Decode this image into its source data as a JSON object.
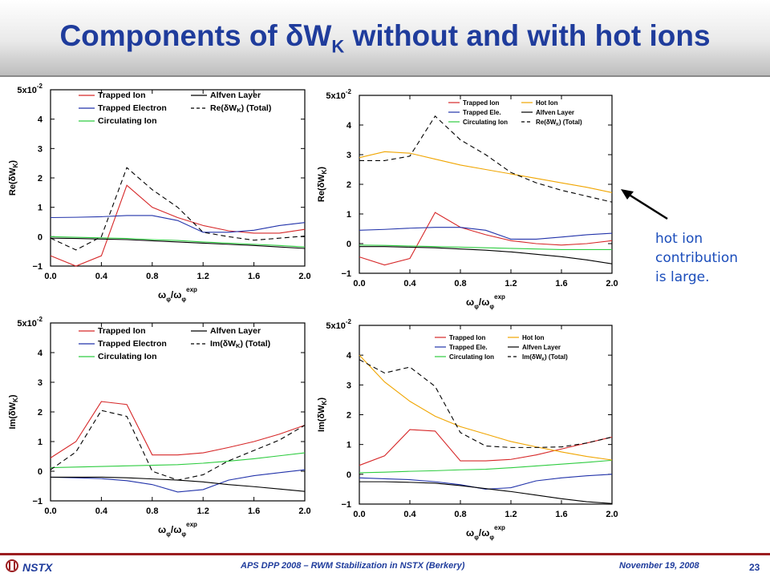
{
  "slide": {
    "title_main": "Components of δW",
    "title_sub": "K",
    "title_rest": " without and with hot ions",
    "annotation": "hot ion\ncontribution\nis large.",
    "footer_logo": "NSTX",
    "footer_center": "APS DPP 2008 – RWM Stabilization in NSTX (Berkery)",
    "footer_date": "November 19, 2008",
    "page": "23"
  },
  "colors": {
    "title": "#1f3c9c",
    "annotation": "#1b4dbb",
    "trapped_ion": "#d62728",
    "trapped_electron": "#2233aa",
    "circulating_ion": "#2ecc40",
    "alfven": "#000000",
    "hot_ion": "#f0a500",
    "total": "#000000",
    "footer_rule": "#9b1d20"
  },
  "chart_data": [
    {
      "type": "line",
      "ylabel": "Re(δW_K)",
      "xlabel": "ω_φ/ω_φ^exp",
      "x": [
        0.0,
        0.2,
        0.4,
        0.6,
        0.8,
        1.0,
        1.2,
        1.4,
        1.6,
        1.8,
        2.0
      ],
      "xlim": [
        0,
        2
      ],
      "ylim": [
        -1,
        5
      ],
      "xticks": [
        "0.0",
        "0.4",
        "0.8",
        "1.2",
        "1.6",
        "2.0"
      ],
      "yticks": [
        "-1",
        "0",
        "1",
        "2",
        "3",
        "4",
        "5x10-2"
      ],
      "legend_cols": 2,
      "series": [
        {
          "name": "Trapped Ion",
          "color": "#d62728",
          "dash": false,
          "values": [
            -0.65,
            -1.0,
            -0.65,
            1.75,
            1.0,
            0.65,
            0.38,
            0.2,
            0.12,
            0.12,
            0.25
          ]
        },
        {
          "name": "Trapped Electron",
          "color": "#2233aa",
          "dash": false,
          "values": [
            0.65,
            0.66,
            0.68,
            0.72,
            0.72,
            0.55,
            0.15,
            0.15,
            0.22,
            0.38,
            0.48
          ]
        },
        {
          "name": "Circulating Ion",
          "color": "#2ecc40",
          "dash": false,
          "values": [
            0.0,
            -0.02,
            -0.04,
            -0.06,
            -0.1,
            -0.13,
            -0.18,
            -0.22,
            -0.26,
            -0.3,
            -0.35
          ]
        },
        {
          "name": "Alfven Layer",
          "color": "#000000",
          "dash": false,
          "values": [
            -0.05,
            -0.06,
            -0.08,
            -0.1,
            -0.14,
            -0.18,
            -0.22,
            -0.26,
            -0.3,
            -0.35,
            -0.4
          ]
        },
        {
          "name": "Re(δW_K) (Total)",
          "color": "#000000",
          "dash": true,
          "values": [
            -0.05,
            -0.45,
            0.0,
            2.35,
            1.6,
            1.0,
            0.15,
            0.0,
            -0.12,
            -0.05,
            0.02
          ]
        }
      ]
    },
    {
      "type": "line",
      "ylabel": "Re(δW_K)",
      "xlabel": "ω_φ/ω_φ^exp",
      "x": [
        0.0,
        0.2,
        0.4,
        0.6,
        0.8,
        1.0,
        1.2,
        1.4,
        1.6,
        1.8,
        2.0
      ],
      "xlim": [
        0,
        2
      ],
      "ylim": [
        -1,
        5
      ],
      "xticks": [
        "0.0",
        "0.4",
        "0.8",
        "1.2",
        "1.6",
        "2.0"
      ],
      "yticks": [
        "-1",
        "0",
        "1",
        "2",
        "3",
        "4",
        "5x10-2"
      ],
      "legend_cols": 3,
      "series": [
        {
          "name": "Trapped Ion",
          "color": "#d62728",
          "dash": false,
          "values": [
            -0.45,
            -0.72,
            -0.5,
            1.05,
            0.55,
            0.3,
            0.1,
            0.0,
            -0.05,
            0.0,
            0.1
          ]
        },
        {
          "name": "Trapped Ele.",
          "color": "#2233aa",
          "dash": false,
          "values": [
            0.45,
            0.48,
            0.52,
            0.55,
            0.55,
            0.45,
            0.15,
            0.15,
            0.22,
            0.3,
            0.35
          ]
        },
        {
          "name": "Circulating Ion",
          "color": "#2ecc40",
          "dash": false,
          "values": [
            -0.05,
            -0.06,
            -0.08,
            -0.1,
            -0.12,
            -0.14,
            -0.16,
            -0.18,
            -0.2,
            -0.2,
            -0.2
          ]
        },
        {
          "name": "Hot Ion",
          "color": "#f0a500",
          "dash": false,
          "values": [
            2.9,
            3.1,
            3.05,
            2.85,
            2.65,
            2.5,
            2.35,
            2.2,
            2.05,
            1.9,
            1.72
          ]
        },
        {
          "name": "Alfven Layer",
          "color": "#000000",
          "dash": false,
          "values": [
            -0.1,
            -0.1,
            -0.12,
            -0.14,
            -0.18,
            -0.22,
            -0.28,
            -0.36,
            -0.44,
            -0.55,
            -0.68
          ]
        },
        {
          "name": "Re(δW_K) (Total)",
          "color": "#000000",
          "dash": true,
          "values": [
            2.8,
            2.8,
            2.95,
            4.3,
            3.5,
            3.0,
            2.4,
            2.05,
            1.8,
            1.6,
            1.4
          ]
        }
      ]
    },
    {
      "type": "line",
      "ylabel": "Im(δW_K)",
      "xlabel": "ω_φ/ω_φ^exp",
      "x": [
        0.0,
        0.2,
        0.4,
        0.6,
        0.8,
        1.0,
        1.2,
        1.4,
        1.6,
        1.8,
        2.0
      ],
      "xlim": [
        0,
        2
      ],
      "ylim": [
        -1,
        5
      ],
      "xticks": [
        "0.0",
        "0.4",
        "0.8",
        "1.2",
        "1.6",
        "2.0"
      ],
      "yticks": [
        "-1",
        "0",
        "1",
        "2",
        "3",
        "4",
        "5x10-2"
      ],
      "legend_cols": 2,
      "series": [
        {
          "name": "Trapped Ion",
          "color": "#d62728",
          "dash": false,
          "values": [
            0.45,
            1.0,
            2.35,
            2.25,
            0.55,
            0.55,
            0.62,
            0.8,
            1.0,
            1.25,
            1.55
          ]
        },
        {
          "name": "Trapped Electron",
          "color": "#2233aa",
          "dash": false,
          "values": [
            -0.2,
            -0.22,
            -0.25,
            -0.32,
            -0.45,
            -0.7,
            -0.62,
            -0.3,
            -0.15,
            -0.05,
            0.05
          ]
        },
        {
          "name": "Circulating Ion",
          "color": "#2ecc40",
          "dash": false,
          "values": [
            0.12,
            0.14,
            0.16,
            0.18,
            0.2,
            0.22,
            0.27,
            0.34,
            0.42,
            0.52,
            0.62
          ]
        },
        {
          "name": "Alfven Layer",
          "color": "#000000",
          "dash": false,
          "values": [
            -0.2,
            -0.2,
            -0.2,
            -0.22,
            -0.26,
            -0.3,
            -0.36,
            -0.45,
            -0.52,
            -0.6,
            -0.68
          ]
        },
        {
          "name": "Im(δW_K) (Total)",
          "color": "#000000",
          "dash": true,
          "values": [
            0.05,
            0.65,
            2.05,
            1.85,
            0.0,
            -0.3,
            -0.12,
            0.35,
            0.7,
            1.05,
            1.55
          ]
        }
      ]
    },
    {
      "type": "line",
      "ylabel": "Im(δW_K)",
      "xlabel": "ω_φ/ω_φ^exp",
      "x": [
        0.0,
        0.2,
        0.4,
        0.6,
        0.8,
        1.0,
        1.2,
        1.4,
        1.6,
        1.8,
        2.0
      ],
      "xlim": [
        0,
        2
      ],
      "ylim": [
        -1,
        5
      ],
      "xticks": [
        "0.0",
        "0.4",
        "0.8",
        "1.2",
        "1.6",
        "2.0"
      ],
      "yticks": [
        "-1",
        "0",
        "1",
        "2",
        "3",
        "4",
        "5x10-2"
      ],
      "legend_cols": 3,
      "series": [
        {
          "name": "Trapped Ion",
          "color": "#d62728",
          "dash": false,
          "values": [
            0.3,
            0.62,
            1.5,
            1.45,
            0.45,
            0.45,
            0.5,
            0.65,
            0.85,
            1.05,
            1.25
          ]
        },
        {
          "name": "Trapped Ele.",
          "color": "#2233aa",
          "dash": false,
          "values": [
            -0.12,
            -0.15,
            -0.18,
            -0.25,
            -0.35,
            -0.5,
            -0.45,
            -0.22,
            -0.12,
            -0.05,
            0.0
          ]
        },
        {
          "name": "Circulating Ion",
          "color": "#2ecc40",
          "dash": false,
          "values": [
            0.05,
            0.07,
            0.1,
            0.12,
            0.15,
            0.17,
            0.22,
            0.28,
            0.34,
            0.4,
            0.47
          ]
        },
        {
          "name": "Hot Ion",
          "color": "#f0a500",
          "dash": false,
          "values": [
            4.0,
            3.1,
            2.45,
            1.95,
            1.6,
            1.35,
            1.1,
            0.92,
            0.75,
            0.6,
            0.48
          ]
        },
        {
          "name": "Alfven Layer",
          "color": "#000000",
          "dash": false,
          "values": [
            -0.25,
            -0.25,
            -0.27,
            -0.3,
            -0.38,
            -0.48,
            -0.58,
            -0.7,
            -0.82,
            -0.92,
            -0.98
          ]
        },
        {
          "name": "Im(δW_K) (Total)",
          "color": "#000000",
          "dash": true,
          "values": [
            3.85,
            3.4,
            3.6,
            2.95,
            1.4,
            0.95,
            0.9,
            0.9,
            0.92,
            1.05,
            1.25
          ]
        }
      ]
    }
  ]
}
